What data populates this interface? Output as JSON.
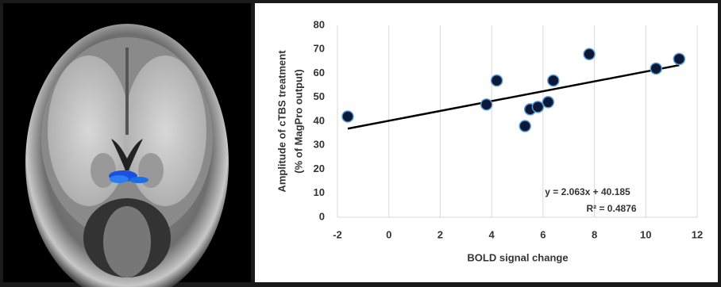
{
  "chart_data": {
    "type": "scatter",
    "x_label": "BOLD signal change",
    "y_label": [
      "Amplitude of cTBS treatment",
      "(% of MagPro output)"
    ],
    "x": [
      -1.6,
      3.8,
      4.2,
      5.3,
      5.5,
      5.8,
      6.2,
      6.4,
      7.8,
      10.4,
      11.3
    ],
    "values": [
      42,
      47,
      57,
      38,
      45,
      46,
      48,
      57,
      68,
      62,
      66
    ],
    "color": "#0b1838",
    "edge_color": "#5b9bd5",
    "trendline": true,
    "annotations": [
      "y = 2.063x + 40.185",
      "R² = 0.4876"
    ],
    "xlim": [
      -2,
      12
    ],
    "xticks": [
      -2,
      0,
      2,
      4,
      6,
      8,
      10,
      12
    ],
    "ylim": [
      0,
      80
    ],
    "yticks": [
      0,
      10,
      20,
      30,
      40,
      50,
      60,
      70,
      80
    ],
    "grid": true
  }
}
